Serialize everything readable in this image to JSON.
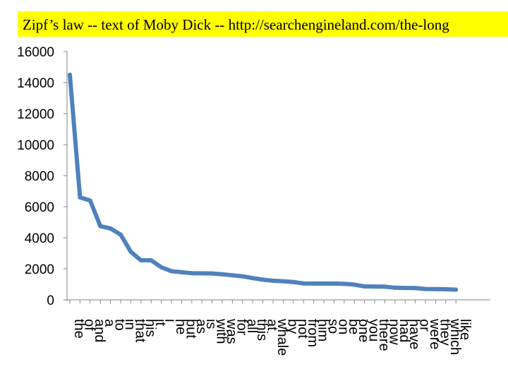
{
  "slide": {
    "title": "Zipf’s law  -- text of Moby Dick -- http://searchengineland.com/the-long"
  },
  "chart_data": {
    "type": "line",
    "title": "",
    "xlabel": "",
    "ylabel": "",
    "ylim": [
      0,
      16000
    ],
    "yticks": [
      0,
      2000,
      4000,
      6000,
      8000,
      10000,
      12000,
      14000,
      16000
    ],
    "grid": false,
    "legend": "none",
    "color": "#4f81bd",
    "categories": [
      "the",
      "of",
      "and",
      "a",
      "to",
      "in",
      "that",
      "his",
      "it",
      "i",
      "he",
      "but",
      "as",
      "is",
      "with",
      "was",
      "for",
      "all",
      "this",
      "at",
      "whale",
      "by",
      "not",
      "from",
      "him",
      "so",
      "on",
      "be",
      "one",
      "you",
      "there",
      "now",
      "had",
      "have",
      "or",
      "were",
      "they",
      "which",
      "like"
    ],
    "values": [
      14500,
      6600,
      6400,
      4750,
      4600,
      4200,
      3100,
      2550,
      2550,
      2100,
      1850,
      1780,
      1720,
      1710,
      1700,
      1650,
      1580,
      1520,
      1400,
      1300,
      1230,
      1200,
      1150,
      1060,
      1050,
      1050,
      1050,
      1030,
      980,
      870,
      860,
      850,
      780,
      770,
      760,
      700,
      690,
      680,
      660
    ]
  }
}
